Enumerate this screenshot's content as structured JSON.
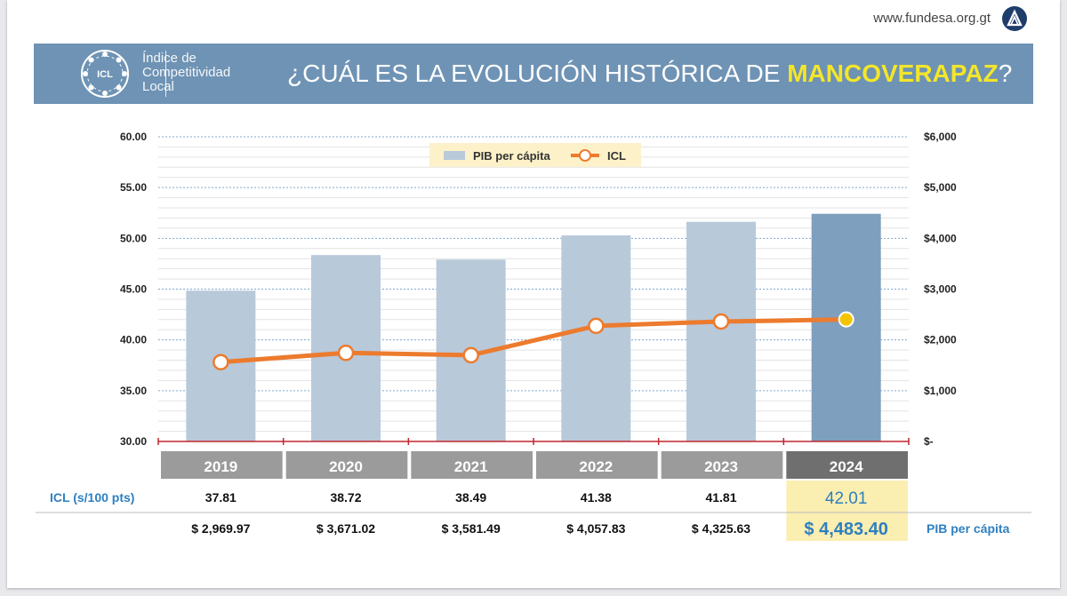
{
  "site": {
    "url": "www.fundesa.org.gt",
    "logo_icon": "fundesa-logo-icon"
  },
  "header": {
    "brand_lines": [
      "Índice de",
      "Competitividad",
      "Local"
    ],
    "logo_text": "ICL",
    "title_prefix": "¿CUÁL ES LA EVOLUCIÓN HISTÓRICA DE ",
    "title_highlight": "MANCOVERAPAZ",
    "title_suffix": "?",
    "bar_color": "#6e93b4",
    "highlight_color": "#f4e62a"
  },
  "chart_data": {
    "type": "bar+line",
    "categories": [
      "2019",
      "2020",
      "2021",
      "2022",
      "2023",
      "2024"
    ],
    "series": [
      {
        "name": "PIB per cápita",
        "type": "bar",
        "axis": "right",
        "values": [
          2969.97,
          3671.02,
          3581.49,
          4057.83,
          4325.63,
          4483.4
        ],
        "color": "#b8c9da",
        "highlight_color": "#7f9fbe"
      },
      {
        "name": "ICL",
        "type": "line",
        "axis": "left",
        "values": [
          37.81,
          38.72,
          38.49,
          41.38,
          41.81,
          42.01
        ],
        "color": "#ec7b2e",
        "highlight_marker_color": "#f5c400"
      }
    ],
    "left_axis": {
      "ylim": [
        30,
        60
      ],
      "ticks": [
        "30.00",
        "35.00",
        "40.00",
        "45.00",
        "50.00",
        "55.00",
        "60.00"
      ]
    },
    "right_axis": {
      "ylim": [
        0,
        6000
      ],
      "ticks": [
        "$-",
        "$1,000",
        "$2,000",
        "$3,000",
        "$4,000",
        "$5,000",
        "$6,000"
      ]
    },
    "legend_position": "top-center",
    "grid": true
  },
  "table": {
    "icl_label": "ICL (s/100 pts)",
    "pib_label": "PIB per cápita",
    "icl_values": [
      "37.81",
      "38.72",
      "38.49",
      "41.38",
      "41.81",
      "42.01"
    ],
    "pib_values": [
      "$ 2,969.97",
      "$ 3,671.02",
      "$ 3,581.49",
      "$ 4,057.83",
      "$ 4,325.63",
      "$ 4,483.40"
    ],
    "year_box_color": "#9b9b9b",
    "year_box_highlight_color": "#6f6f6f",
    "value_highlight_bg": "#fbeeb1"
  }
}
